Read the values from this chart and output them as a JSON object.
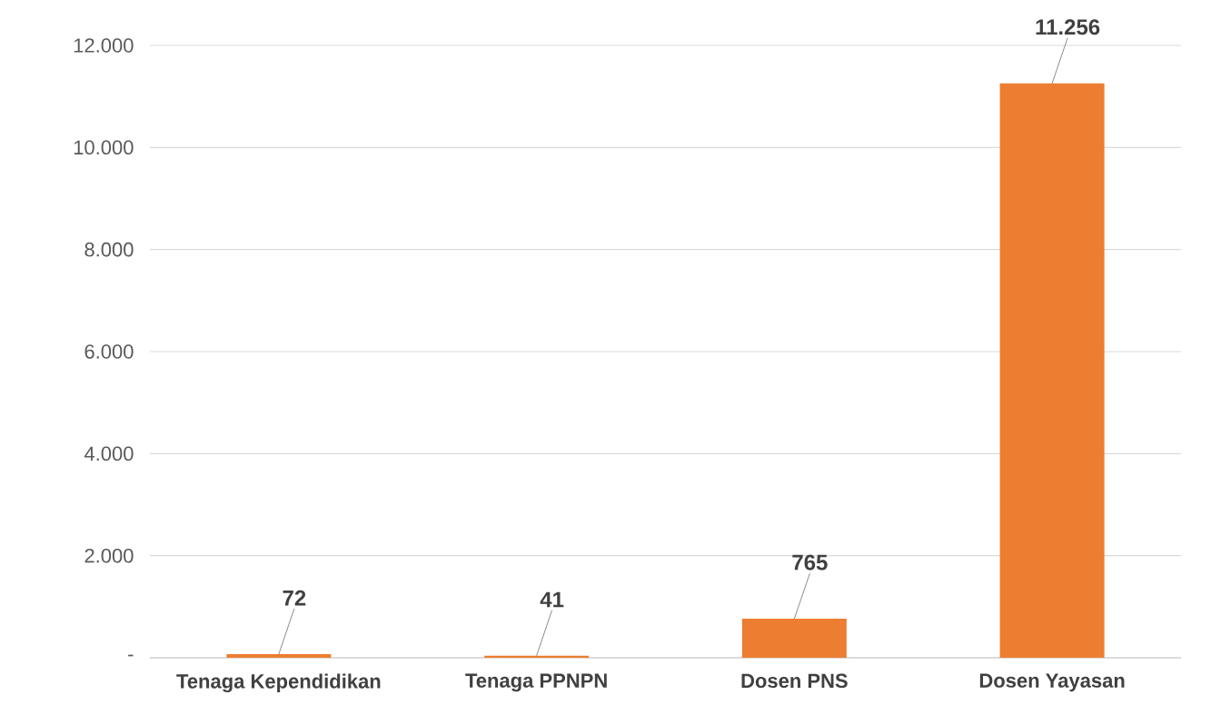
{
  "chart_data": {
    "type": "bar",
    "categories": [
      "Tenaga Kependidikan",
      "Tenaga PPNPN",
      "Dosen PNS",
      "Dosen Yayasan"
    ],
    "values": [
      72,
      41,
      765,
      11256
    ],
    "value_labels": [
      "72",
      "41",
      "765",
      "11.256"
    ],
    "color": "#ed7d31",
    "ylim": [
      0,
      12000
    ],
    "yticks": [
      {
        "value": 0,
        "label": "-"
      },
      {
        "value": 2000,
        "label": "2.000"
      },
      {
        "value": 4000,
        "label": "4.000"
      },
      {
        "value": 6000,
        "label": "6.000"
      },
      {
        "value": 8000,
        "label": "8.000"
      },
      {
        "value": 10000,
        "label": "10.000"
      },
      {
        "value": 12000,
        "label": "12.000"
      }
    ],
    "grid": "y"
  }
}
